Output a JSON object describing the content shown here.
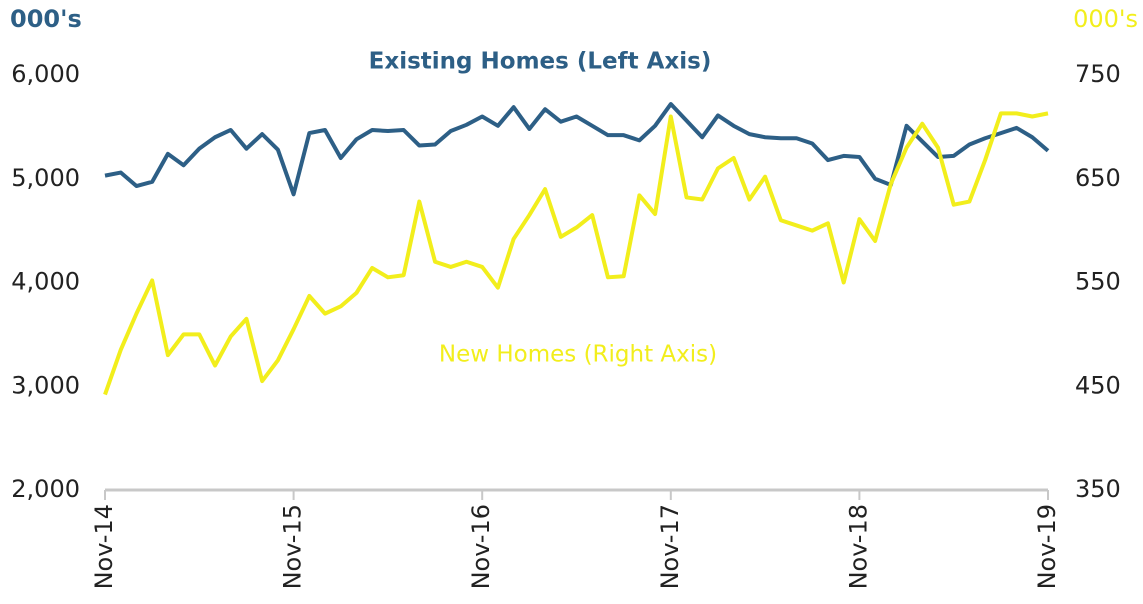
{
  "chart_data": {
    "type": "line",
    "annotations": [
      "Existing Homes (Left Axis)",
      "New  Homes (Right Axis)"
    ],
    "y_label": "000's",
    "y2_label": "000's",
    "categories": [
      "Nov-14",
      null,
      null,
      null,
      null,
      null,
      null,
      null,
      null,
      null,
      null,
      null,
      "Nov-15",
      null,
      null,
      null,
      null,
      null,
      null,
      null,
      null,
      null,
      null,
      null,
      "Nov-16",
      null,
      null,
      null,
      null,
      null,
      null,
      null,
      null,
      null,
      null,
      null,
      "Nov-17",
      null,
      null,
      null,
      null,
      null,
      null,
      null,
      null,
      null,
      null,
      null,
      "Nov-18",
      null,
      null,
      null,
      null,
      null,
      null,
      null,
      null,
      null,
      null,
      null,
      "Nov-19"
    ],
    "series": [
      {
        "name": "Existing Homes",
        "color": "#2d5f86",
        "values": [
          5030,
          5060,
          4930,
          4970,
          5240,
          5130,
          5290,
          5400,
          5470,
          5290,
          5430,
          5280,
          4850,
          5440,
          5470,
          5200,
          5380,
          5470,
          5460,
          5470,
          5320,
          5330,
          5460,
          5520,
          5600,
          5510,
          5690,
          5480,
          5670,
          5550,
          5600,
          5510,
          5420,
          5420,
          5370,
          5510,
          5720,
          5560,
          5400,
          5610,
          5510,
          5430,
          5400,
          5390,
          5390,
          5340,
          5180,
          5220,
          5210,
          5000,
          4940,
          5510,
          5360,
          5210,
          5220,
          5330,
          5390,
          5440,
          5490,
          5400,
          5270
        ]
      },
      {
        "name": "New Homes",
        "color": "#f2ee1c",
        "axis": "y2",
        "values": [
          442,
          485,
          520,
          552,
          480,
          500,
          500,
          470,
          498,
          515,
          455,
          475,
          505,
          537,
          520,
          527,
          540,
          564,
          555,
          557,
          628,
          570,
          565,
          570,
          565,
          545,
          592,
          615,
          640,
          594,
          603,
          615,
          555,
          556,
          634,
          616,
          710,
          632,
          630,
          660,
          670,
          630,
          652,
          610,
          605,
          600,
          607,
          550,
          611,
          590,
          645,
          680,
          703,
          680,
          625,
          628,
          668,
          713,
          713,
          710,
          713
        ]
      }
    ],
    "ylim": [
      2000,
      6000
    ],
    "yticks": [
      {
        "value": 2000,
        "label": "2,000"
      },
      {
        "value": 3000,
        "label": "3,000"
      },
      {
        "value": 4000,
        "label": "4,000"
      },
      {
        "value": 5000,
        "label": "5,000"
      },
      {
        "value": 6000,
        "label": "6,000"
      }
    ],
    "y2lim": [
      350,
      750
    ],
    "y2ticks": [
      350,
      450,
      550,
      650,
      750
    ],
    "grid": false
  }
}
